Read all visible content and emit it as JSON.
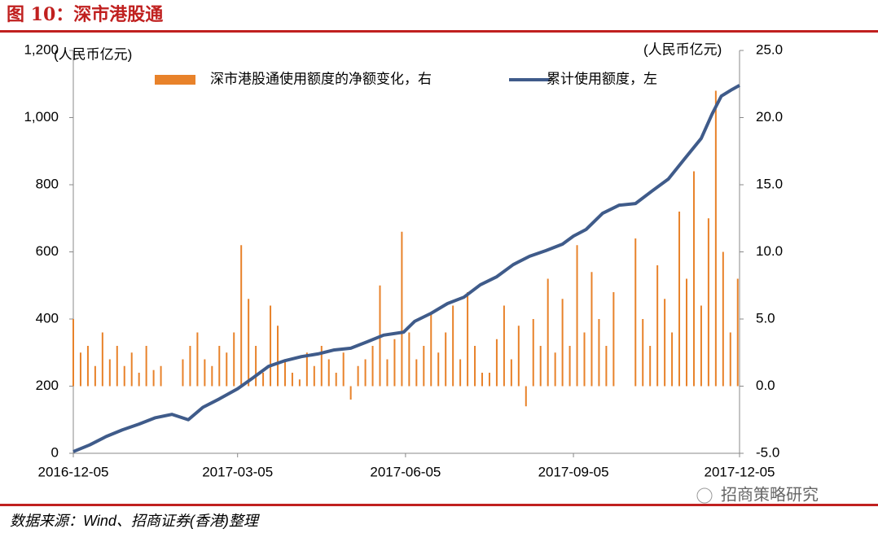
{
  "header": {
    "title": "图 10：深市港股通"
  },
  "footer": {
    "source": "数据来源：Wind、招商证券(香港)整理",
    "watermark": "招商策略研究"
  },
  "chart_data": {
    "type": "combo",
    "y_unit": "(人民币亿元)",
    "y2_unit": "(人民币亿元)",
    "xlim": [
      "2016-12-05",
      "2017-12-05"
    ],
    "xticks": [
      "2016-12-05",
      "2017-03-05",
      "2017-06-05",
      "2017-09-05",
      "2017-12-05"
    ],
    "ylim": [
      0,
      1200
    ],
    "yticks": [
      0,
      200,
      400,
      600,
      800,
      {
        "value": 1000,
        "label": "1,000"
      },
      {
        "value": 1200,
        "label": "1,200"
      }
    ],
    "y2lim": [
      -5,
      25
    ],
    "y2ticks": [
      {
        "value": -5,
        "label": "-5.0"
      },
      {
        "value": 0,
        "label": "0.0"
      },
      {
        "value": 5,
        "label": "5.0"
      },
      {
        "value": 10,
        "label": "10.0"
      },
      {
        "value": 15,
        "label": "15.0"
      },
      {
        "value": 20,
        "label": "20.0"
      },
      {
        "value": 25,
        "label": "25.0"
      }
    ],
    "series": [
      {
        "name": "深市港股通使用额度的净额变化，右",
        "type": "bar",
        "axis": "y2",
        "color": "#e8822a",
        "x": [
          "2016-12-05",
          "2016-12-09",
          "2016-12-13",
          "2016-12-17",
          "2016-12-21",
          "2016-12-25",
          "2016-12-29",
          "2017-01-02",
          "2017-01-06",
          "2017-01-10",
          "2017-01-14",
          "2017-01-18",
          "2017-01-22",
          "2017-01-26",
          "2017-01-30",
          "2017-02-03",
          "2017-02-07",
          "2017-02-11",
          "2017-02-15",
          "2017-02-19",
          "2017-02-23",
          "2017-02-27",
          "2017-03-03",
          "2017-03-07",
          "2017-03-11",
          "2017-03-15",
          "2017-03-19",
          "2017-03-23",
          "2017-03-27",
          "2017-03-31",
          "2017-04-04",
          "2017-04-08",
          "2017-04-12",
          "2017-04-16",
          "2017-04-20",
          "2017-04-24",
          "2017-04-28",
          "2017-05-02",
          "2017-05-06",
          "2017-05-10",
          "2017-05-14",
          "2017-05-18",
          "2017-05-22",
          "2017-05-26",
          "2017-05-30",
          "2017-06-03",
          "2017-06-07",
          "2017-06-11",
          "2017-06-15",
          "2017-06-19",
          "2017-06-23",
          "2017-06-27",
          "2017-07-01",
          "2017-07-05",
          "2017-07-09",
          "2017-07-13",
          "2017-07-17",
          "2017-07-21",
          "2017-07-25",
          "2017-07-29",
          "2017-08-02",
          "2017-08-06",
          "2017-08-10",
          "2017-08-14",
          "2017-08-18",
          "2017-08-22",
          "2017-08-26",
          "2017-08-30",
          "2017-09-03",
          "2017-09-07",
          "2017-09-11",
          "2017-09-15",
          "2017-09-19",
          "2017-09-23",
          "2017-09-27",
          "2017-10-01",
          "2017-10-05",
          "2017-10-09",
          "2017-10-13",
          "2017-10-17",
          "2017-10-21",
          "2017-10-25",
          "2017-10-29",
          "2017-11-02",
          "2017-11-06",
          "2017-11-10",
          "2017-11-14",
          "2017-11-18",
          "2017-11-22",
          "2017-11-26",
          "2017-11-30",
          "2017-12-04"
        ],
        "values": [
          5,
          2.5,
          3,
          1.5,
          4,
          2,
          3,
          1.5,
          2.5,
          1,
          3,
          1.2,
          1.5,
          null,
          null,
          2,
          3,
          4,
          2,
          1.5,
          3,
          2.5,
          4,
          10.5,
          6.5,
          3,
          1,
          6,
          4.5,
          2,
          1,
          0.5,
          2.5,
          1.5,
          3,
          2,
          1,
          2.5,
          -1,
          1.5,
          2,
          3,
          7.5,
          2,
          3.5,
          11.5,
          4,
          2,
          3,
          5.5,
          2.5,
          4,
          6,
          2,
          7,
          3,
          1,
          1,
          3.5,
          6,
          2,
          4.5,
          -1.5,
          5,
          3,
          8,
          2.5,
          6.5,
          3,
          10.5,
          4,
          8.5,
          5,
          3,
          7,
          null,
          null,
          11,
          5,
          3,
          9,
          6.5,
          4,
          13,
          8,
          16,
          6,
          12.5,
          22,
          10,
          4,
          8
        ]
      },
      {
        "name": "累计使用额度，左",
        "type": "line",
        "color": "#3f5b8a",
        "x": [
          "2016-12-05",
          "2016-12-14",
          "2016-12-23",
          "2017-01-01",
          "2017-01-10",
          "2017-01-19",
          "2017-01-28",
          "2017-02-06",
          "2017-02-14",
          "2017-02-23",
          "2017-03-05",
          "2017-03-13",
          "2017-03-22",
          "2017-03-31",
          "2017-04-09",
          "2017-04-18",
          "2017-04-27",
          "2017-05-06",
          "2017-05-15",
          "2017-05-24",
          "2017-06-04",
          "2017-06-10",
          "2017-06-19",
          "2017-06-28",
          "2017-07-07",
          "2017-07-16",
          "2017-07-25",
          "2017-08-03",
          "2017-08-12",
          "2017-08-21",
          "2017-08-30",
          "2017-09-05",
          "2017-09-12",
          "2017-09-21",
          "2017-09-30",
          "2017-10-09",
          "2017-10-18",
          "2017-10-27",
          "2017-11-05",
          "2017-11-14",
          "2017-11-20",
          "2017-11-25",
          "2017-12-01",
          "2017-12-05"
        ],
        "values": [
          5,
          25,
          50,
          70,
          87,
          106,
          116,
          100,
          137,
          162,
          192,
          223,
          259,
          276,
          288,
          296,
          308,
          313,
          332,
          352,
          361,
          393,
          417,
          446,
          465,
          502,
          526,
          562,
          587,
          604,
          623,
          647,
          667,
          715,
          739,
          744,
          781,
          817,
          878,
          938,
          1011,
          1064,
          1084,
          1096
        ]
      }
    ]
  }
}
